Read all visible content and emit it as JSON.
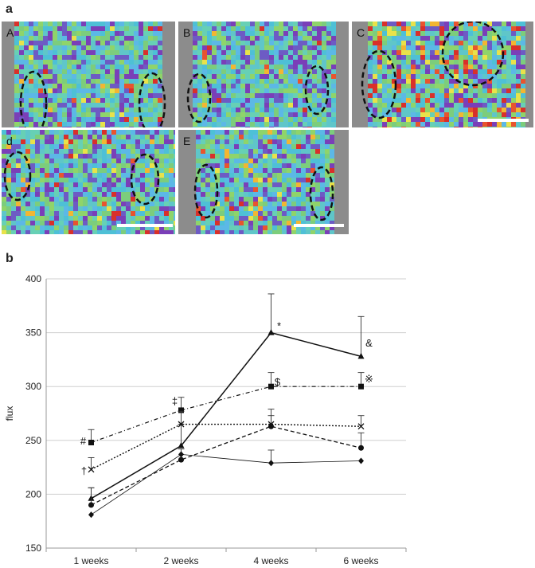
{
  "panel_a": {
    "letter": "a",
    "tiles": [
      {
        "label": "A"
      },
      {
        "label": "B"
      },
      {
        "label": "C"
      },
      {
        "label": "d"
      },
      {
        "label": "E"
      }
    ]
  },
  "panel_b": {
    "letter": "b"
  },
  "chart_data": {
    "type": "line",
    "ylabel": "flux",
    "ylim": [
      150,
      400
    ],
    "yticks": [
      150,
      200,
      250,
      300,
      350,
      400
    ],
    "grid": true,
    "categories": [
      "1 weeks",
      "2 weeks",
      "4 weeks",
      "6 weeks"
    ],
    "series": [
      {
        "marker": "triangle",
        "line": "solid",
        "values": [
          196,
          245,
          350,
          328
        ],
        "errors": [
          10,
          20,
          36,
          37
        ]
      },
      {
        "marker": "square",
        "line": "dash-dot",
        "values": [
          248,
          278,
          300,
          300
        ],
        "errors": [
          12,
          12,
          13,
          13
        ]
      },
      {
        "marker": "cross",
        "line": "dotted",
        "values": [
          223,
          265,
          265,
          263
        ],
        "errors": [
          11,
          12,
          14,
          10
        ]
      },
      {
        "marker": "circle",
        "line": "dashed",
        "values": [
          190,
          232,
          263,
          243
        ],
        "errors": [
          16,
          10,
          10,
          14
        ]
      },
      {
        "marker": "diamond",
        "line": "thin-solid",
        "values": [
          181,
          237,
          229,
          231
        ],
        "errors": [
          0,
          0,
          12,
          0
        ]
      }
    ],
    "annotations": [
      "#",
      "†",
      "‡",
      "*",
      "$",
      "&",
      "※"
    ]
  }
}
